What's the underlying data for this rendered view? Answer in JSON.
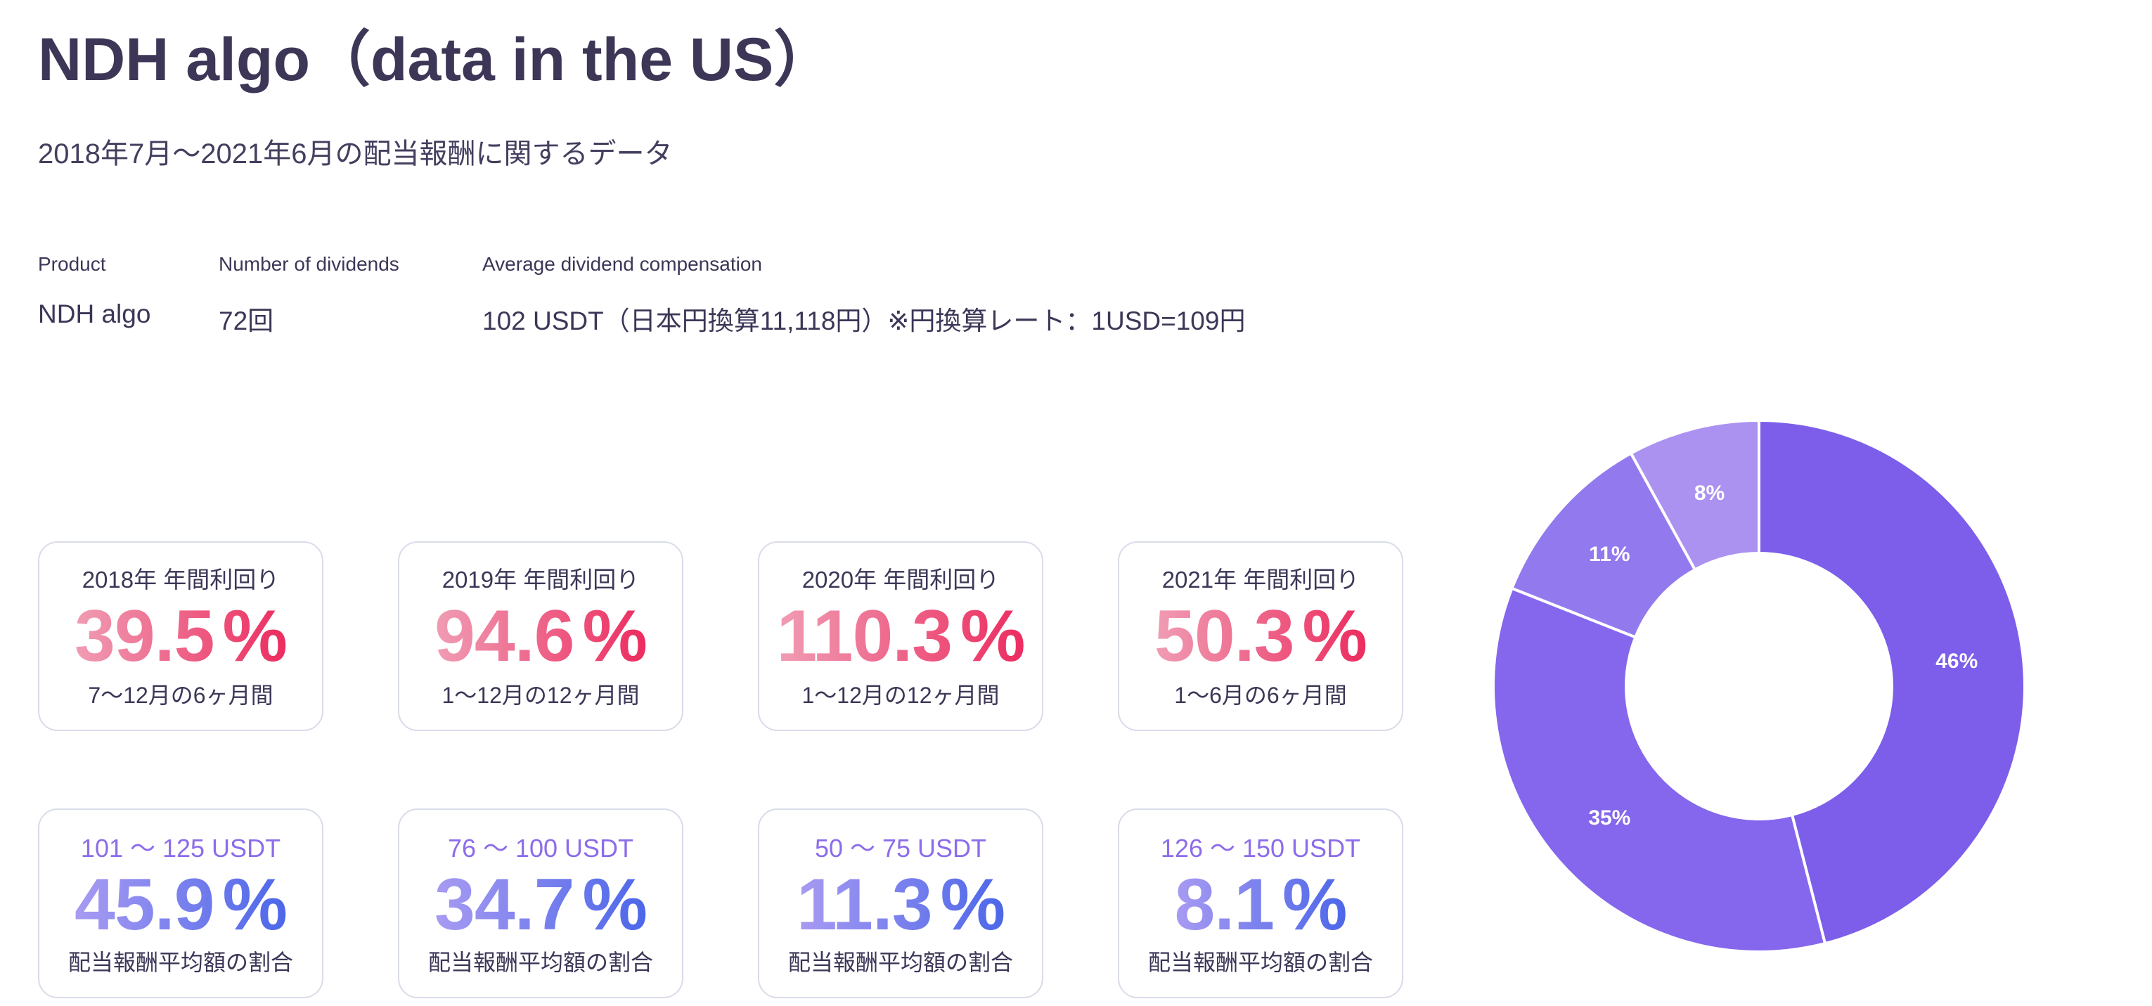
{
  "page": {
    "title": "NDH algo（data in the US）",
    "subtitle": "2018年7月～2021年6月の配当報酬に関するデータ"
  },
  "info": {
    "columns": [
      {
        "label": "Product",
        "value": "NDH algo"
      },
      {
        "label": "Number of dividends",
        "value": "72回"
      },
      {
        "label": "Average dividend compensation",
        "value": "102 USDT（日本円換算11,118円）※円換算レート：1USD=109円"
      }
    ]
  },
  "yield_cards": [
    {
      "title": "2018年 年間利回り",
      "value": "39.5",
      "unit": "%",
      "period": "7～12月の6ヶ月間"
    },
    {
      "title": "2019年 年間利回り",
      "value": "94.6",
      "unit": "%",
      "period": "1～12月の12ヶ月間"
    },
    {
      "title": "2020年 年間利回り",
      "value": "110.3",
      "unit": "%",
      "period": "1～12月の12ヶ月間"
    },
    {
      "title": "2021年 年間利回り",
      "value": "50.3",
      "unit": "%",
      "period": "1～6月の6ヶ月間"
    }
  ],
  "dividend_cards": [
    {
      "range": "101 ～ 125 USDT",
      "value": "45.9",
      "unit": "%",
      "caption": "配当報酬平均額の割合"
    },
    {
      "range": "76 ～ 100 USDT",
      "value": "34.7",
      "unit": "%",
      "caption": "配当報酬平均額の割合"
    },
    {
      "range": "50 ～ 75 USDT",
      "value": "11.3",
      "unit": "%",
      "caption": "配当報酬平均額の割合"
    },
    {
      "range": "126 ～ 150 USDT",
      "value": "8.1",
      "unit": "%",
      "caption": "配当報酬平均額の割合"
    }
  ],
  "chart_data": {
    "type": "pie",
    "subtype": "donut",
    "values": [
      46,
      35,
      11,
      8
    ],
    "labels": [
      "46%",
      "35%",
      "11%",
      "8%"
    ],
    "colors": [
      "#7c5eea",
      "#8467ec",
      "#9379ee",
      "#ab92f1"
    ],
    "start_angle_deg": 0,
    "direction": "clockwise",
    "inner_radius_ratio": 0.5,
    "label_color": "#ffffff",
    "separator_color": "#ffffff",
    "legend": "none",
    "title": ""
  },
  "colors": {
    "text_dark": "#3d3657",
    "card_border": "#d9dce9",
    "range_label_purple": "#8c6ceb",
    "pink_gradient": [
      "#f09db4",
      "#ec2c5f"
    ],
    "purple_gradient": [
      "#a89bf2",
      "#4c67e9"
    ]
  }
}
